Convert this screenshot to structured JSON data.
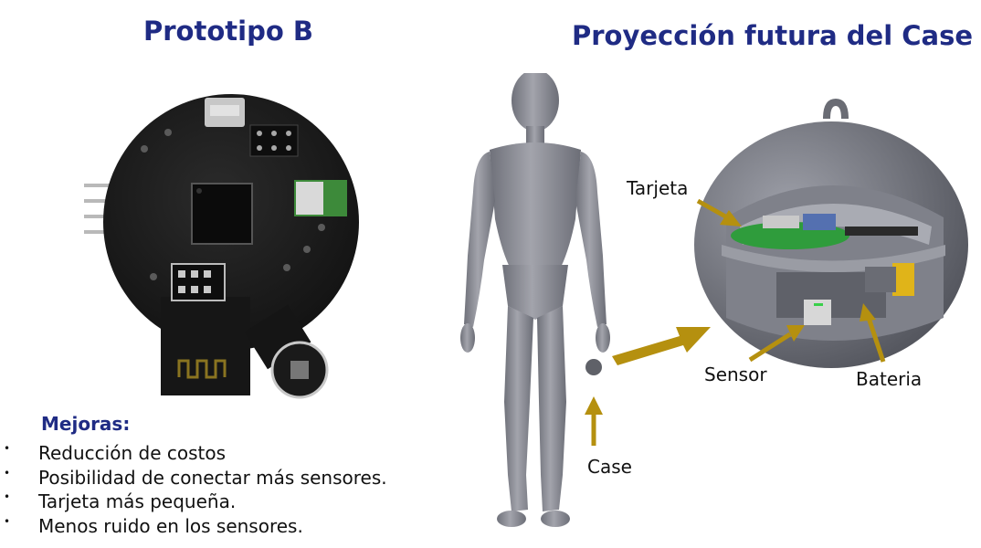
{
  "titles": {
    "left": "Prototipo B",
    "right": "Proyección futura del Case"
  },
  "mejoras": {
    "title": "Mejoras:",
    "items": [
      "Reducción de costos",
      "Posibilidad de conectar más sensores.",
      "Tarjeta más pequeña.",
      "Menos ruido en los sensores."
    ]
  },
  "labels": {
    "tarjeta": "Tarjeta",
    "sensor": "Sensor",
    "bateria": "Bateria",
    "case": "Case"
  },
  "colors": {
    "title": "#1f2b84",
    "arrow": "#b5900f",
    "pcb": "#1d1d1d",
    "body": "#8f9098",
    "case_shell": "#6e7079",
    "board_green": "#2f9c3c"
  },
  "icons": {
    "bullet": "•"
  }
}
